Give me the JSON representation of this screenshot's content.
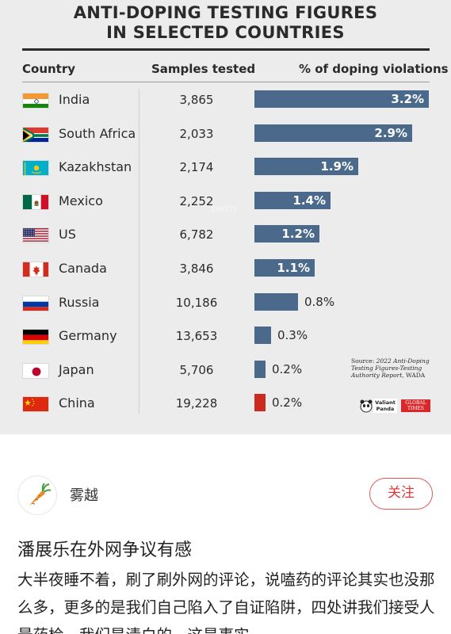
{
  "infographic": {
    "title_line1": "ANTI-DOPING TESTING FIGURES",
    "title_line2": "IN SELECTED COUNTRIES",
    "headers": {
      "country": "Country",
      "samples": "Samples tested",
      "violations": "% of doping violations"
    },
    "source_prefix": "Source: ",
    "source_italic": "2022 Anti-Doping Testing Figures-Testing Authority Report",
    "source_suffix": ", WADA",
    "logos": {
      "left_top": "Valiant",
      "left_bottom": "Panda",
      "right_top": "GLOBAL",
      "right_bottom": "TIMES"
    },
    "watermark": "1MI375"
  },
  "chart_data": {
    "type": "bar",
    "title": "ANTI-DOPING TESTING FIGURES IN SELECTED COUNTRIES",
    "categories": [
      "India",
      "South Africa",
      "Kazakhstan",
      "Mexico",
      "US",
      "Canada",
      "Russia",
      "Germany",
      "Japan",
      "China"
    ],
    "samples_tested": [
      "3,865",
      "2,033",
      "2,174",
      "2,252",
      "6,782",
      "3,846",
      "10,186",
      "13,653",
      "5,706",
      "19,228"
    ],
    "series": [
      {
        "name": "% of doping violations",
        "values": [
          3.2,
          2.9,
          1.9,
          1.4,
          1.2,
          1.1,
          0.8,
          0.3,
          0.2,
          0.2
        ]
      }
    ],
    "labels": [
      "3.2%",
      "2.9%",
      "1.9%",
      "1.4%",
      "1.2%",
      "1.1%",
      "0.8%",
      "0.3%",
      "0.2%",
      "0.2%"
    ],
    "bar_colors": [
      "#4b6a8b",
      "#4b6a8b",
      "#4b6a8b",
      "#4b6a8b",
      "#4b6a8b",
      "#4b6a8b",
      "#4b6a8b",
      "#4b6a8b",
      "#4b6a8b",
      "#cc2a1f"
    ],
    "flags": [
      "india-flag-icon",
      "south-africa-flag-icon",
      "kazakhstan-flag-icon",
      "mexico-flag-icon",
      "us-flag-icon",
      "canada-flag-icon",
      "russia-flag-icon",
      "germany-flag-icon",
      "japan-flag-icon",
      "china-flag-icon"
    ],
    "xlim": [
      0,
      3.2
    ]
  },
  "post": {
    "username": "雾越",
    "avatar_icon": "carrot-icon",
    "follow_label": "关注",
    "title": "潘展乐在外网争议有感",
    "body": "大半夜睡不着，刷了刷外网的评论，说嗑药的评论其实也没那么多，更多的是我们自己陷入了自证陷阱，四处讲我们接受人最药检，我们是清白的，这是事实"
  },
  "colors": {
    "accent": "#e0393c",
    "bar": "#4b6a8b",
    "china_bar": "#cc2a1f"
  }
}
